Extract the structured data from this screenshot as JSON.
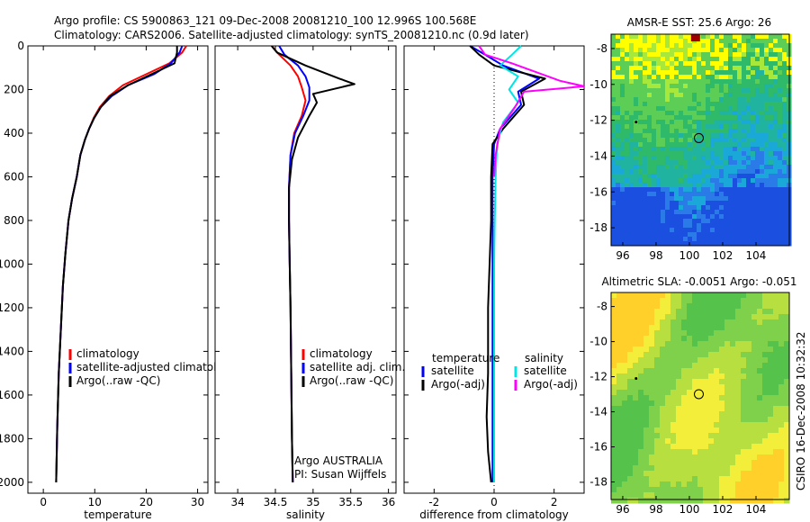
{
  "header": {
    "title_line1": "Argo profile: CS 5900863_121 09-Dec-2008 20081210_100 12.996S 100.568E",
    "title_line2": "Climatology: CARS2006. Satellite-adjusted climatology: synTS_20081210.nc (0.9d later)"
  },
  "side_text": "CSIRO 16-Dec-2008 10:32:32",
  "colors": {
    "climatology": "#ff0000",
    "satellite": "#0000ff",
    "argo": "#000000",
    "argo_salinity": "#ff00ff",
    "satellite_salinity": "#00e5e5",
    "marker": "#000000"
  },
  "chart_data": [
    {
      "type": "line",
      "xlabel": "temperature",
      "ylabel": "",
      "xlim": [
        -3,
        32
      ],
      "ylim": [
        2050,
        0
      ],
      "y_inverted": true,
      "xticks": [
        0,
        10,
        20,
        30
      ],
      "yticks": [
        0,
        200,
        400,
        600,
        800,
        1000,
        1200,
        1400,
        1600,
        1800,
        2000
      ],
      "legend": [
        "climatology",
        "satellite-adjusted climatology",
        "Argo(..raw -QC)"
      ],
      "legend_position": "lower-right",
      "series": [
        {
          "name": "climatology",
          "color": "#ff0000",
          "x": [
            27.8,
            27.0,
            24.5,
            20.0,
            15.5,
            12.8,
            11.0,
            9.8,
            8.9,
            8.1,
            7.2,
            6.5,
            5.6,
            4.9,
            4.3,
            3.8,
            3.4,
            3.0,
            2.7,
            2.5
          ],
          "y": [
            0,
            30,
            80,
            130,
            180,
            230,
            280,
            330,
            380,
            430,
            500,
            600,
            700,
            800,
            950,
            1100,
            1300,
            1500,
            1750,
            2000
          ]
        },
        {
          "name": "satellite-adjusted climatology",
          "color": "#0000ff",
          "x": [
            27.0,
            26.5,
            24.8,
            21.5,
            16.5,
            13.3,
            11.2,
            9.9,
            8.9,
            8.1,
            7.2,
            6.5,
            5.6,
            4.9,
            4.3,
            3.8,
            3.4,
            3.0,
            2.7,
            2.5
          ],
          "y": [
            0,
            30,
            80,
            130,
            180,
            230,
            280,
            330,
            380,
            430,
            500,
            600,
            700,
            800,
            950,
            1100,
            1300,
            1500,
            1750,
            2000
          ]
        },
        {
          "name": "Argo(..raw -QC)",
          "color": "#000000",
          "x": [
            26.0,
            26.0,
            25.5,
            21.0,
            16.5,
            13.0,
            11.2,
            9.9,
            8.9,
            8.1,
            7.2,
            6.5,
            5.6,
            4.9,
            4.3,
            3.8,
            3.4,
            3.0,
            2.7,
            2.5
          ],
          "y": [
            0,
            30,
            80,
            130,
            180,
            230,
            280,
            330,
            380,
            430,
            500,
            600,
            700,
            800,
            950,
            1100,
            1300,
            1500,
            1750,
            2000
          ]
        }
      ]
    },
    {
      "type": "line",
      "xlabel": "salinity",
      "ylabel": "",
      "xlim": [
        33.7,
        36.1
      ],
      "ylim": [
        2050,
        0
      ],
      "y_inverted": true,
      "xticks": [
        34,
        34.5,
        35,
        35.5,
        36
      ],
      "legend": [
        "climatology",
        "satellite adj. clim.",
        "Argo(..raw -QC)"
      ],
      "legend_position": "lower-right",
      "annotations": [
        "Argo AUSTRALIA",
        "PI: Susan Wijffels"
      ],
      "series": [
        {
          "name": "climatology",
          "color": "#ff0000",
          "x": [
            34.45,
            34.55,
            34.7,
            34.8,
            34.85,
            34.9,
            34.85,
            34.75,
            34.7,
            34.68,
            34.68,
            34.69,
            34.7,
            34.71,
            34.72,
            34.73
          ],
          "y": [
            0,
            40,
            90,
            140,
            190,
            250,
            320,
            400,
            500,
            650,
            800,
            1000,
            1200,
            1500,
            1800,
            2000
          ]
        },
        {
          "name": "satellite adj. clim.",
          "color": "#0000ff",
          "x": [
            34.55,
            34.62,
            34.8,
            34.9,
            34.95,
            34.95,
            34.87,
            34.76,
            34.7,
            34.68,
            34.68,
            34.69,
            34.7,
            34.71,
            34.72,
            34.73
          ],
          "y": [
            0,
            40,
            90,
            140,
            190,
            250,
            320,
            400,
            500,
            650,
            800,
            1000,
            1200,
            1500,
            1800,
            2000
          ]
        },
        {
          "name": "Argo(..raw -QC)",
          "color": "#000000",
          "x": [
            34.45,
            34.52,
            34.9,
            35.35,
            35.55,
            35.0,
            35.05,
            34.95,
            34.8,
            34.72,
            34.68,
            34.68,
            34.69,
            34.7,
            34.71,
            34.72,
            34.73
          ],
          "y": [
            0,
            30,
            90,
            150,
            175,
            220,
            260,
            320,
            420,
            520,
            650,
            800,
            1000,
            1200,
            1500,
            1800,
            2000
          ]
        }
      ]
    },
    {
      "type": "line",
      "xlabel": "difference from climatology",
      "ylabel": "",
      "xlim": [
        -3,
        3
      ],
      "ylim": [
        2050,
        0
      ],
      "y_inverted": true,
      "xticks": [
        -2,
        0,
        2
      ],
      "legend_headers": [
        "temperature",
        "salinity"
      ],
      "legend": [
        "satellite",
        "Argo(-adj)",
        "satellite",
        "Argo(-adj)"
      ],
      "legend_position": "lower-right",
      "series": [
        {
          "name": "satellite",
          "color": "#0000ff",
          "x": [
            -0.8,
            -0.3,
            0.3,
            1.5,
            0.8,
            0.9,
            0.2,
            0.0,
            -0.05,
            -0.05,
            -0.05,
            -0.05,
            -0.05,
            -0.05,
            -0.05
          ],
          "y": [
            0,
            40,
            90,
            150,
            210,
            270,
            380,
            450,
            600,
            800,
            1000,
            1200,
            1500,
            1800,
            2000
          ]
        },
        {
          "name": "Argo(-adj)",
          "color": "#000000",
          "x": [
            -0.8,
            -0.5,
            0.0,
            1.7,
            0.9,
            1.0,
            0.3,
            -0.05,
            -0.1,
            -0.1,
            -0.15,
            -0.2,
            -0.2,
            -0.25,
            -0.2,
            -0.1
          ],
          "y": [
            0,
            40,
            90,
            150,
            210,
            270,
            380,
            450,
            600,
            800,
            1000,
            1200,
            1500,
            1700,
            1860,
            2000
          ]
        },
        {
          "name": "satellite",
          "color": "#00e5e5",
          "x": [
            0.9,
            0.6,
            0.2,
            0.8,
            0.5,
            0.8,
            0.3,
            0.1,
            0.05,
            0.02,
            0.0,
            0.0,
            0.0,
            0.0,
            0.0
          ],
          "y": [
            0,
            40,
            90,
            140,
            200,
            260,
            350,
            450,
            600,
            800,
            1000,
            1200,
            1500,
            1800,
            2000
          ]
        },
        {
          "name": "Argo(-adj)",
          "color": "#ff00ff",
          "x": [
            -0.5,
            -0.3,
            0.6,
            2.2,
            3.0,
            1.0,
            0.7,
            0.2,
            0.05,
            0.0
          ],
          "y": [
            0,
            40,
            80,
            160,
            185,
            210,
            280,
            380,
            500,
            600
          ]
        }
      ]
    },
    {
      "type": "heatmap",
      "title": "AMSR-E SST: 25.6  Argo: 26",
      "xlim": [
        95.3,
        106
      ],
      "ylim": [
        -19,
        -7.2
      ],
      "xticks": [
        96,
        98,
        100,
        102,
        104
      ],
      "yticks": [
        -8,
        -10,
        -12,
        -14,
        -16,
        -18
      ],
      "float_position": [
        100.568,
        -12.996
      ]
    },
    {
      "type": "heatmap",
      "title": "Altimetric SLA: -0.0051  Argo: -0.051",
      "xlim": [
        95.3,
        106
      ],
      "ylim": [
        -19,
        -7.2
      ],
      "xticks": [
        96,
        98,
        100,
        102,
        104
      ],
      "yticks": [
        -8,
        -10,
        -12,
        -14,
        -16,
        -18
      ],
      "float_position": [
        100.568,
        -12.996
      ]
    }
  ]
}
